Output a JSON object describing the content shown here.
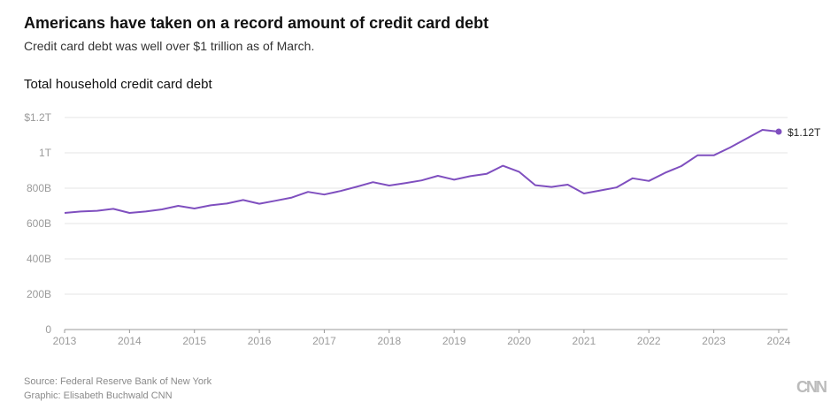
{
  "header": {
    "title": "Americans have taken on a record amount of credit card debt",
    "subtitle": "Credit card debt was well over $1 trillion as of March."
  },
  "footer": {
    "source": "Source: Federal Reserve Bank of New York",
    "graphic": "Graphic: Elisabeth Buchwald CNN",
    "logo": "CNN"
  },
  "colors": {
    "line": "#7f4fbf",
    "grid": "#e6e6e6"
  },
  "chart_data": {
    "type": "line",
    "title": "Total household credit card debt",
    "xlabel": "",
    "ylabel": "",
    "units": "billions USD",
    "xlim": [
      2013,
      2024.25
    ],
    "ylim": [
      0,
      1200
    ],
    "grid": true,
    "x_ticks": [
      "2013",
      "2014",
      "2015",
      "2016",
      "2017",
      "2018",
      "2019",
      "2020",
      "2021",
      "2022",
      "2023",
      "2024"
    ],
    "y_ticks": [
      {
        "value": 0,
        "label": "0"
      },
      {
        "value": 200,
        "label": "200B"
      },
      {
        "value": 400,
        "label": "400B"
      },
      {
        "value": 600,
        "label": "600B"
      },
      {
        "value": 800,
        "label": "800B"
      },
      {
        "value": 1000,
        "label": "1T"
      },
      {
        "value": 1200,
        "label": "$1.2T"
      }
    ],
    "x_start": 2013,
    "x_step": 0.25,
    "series": [
      {
        "name": "Total household credit card debt",
        "values": [
          660,
          668,
          672,
          683,
          660,
          668,
          680,
          700,
          685,
          703,
          713,
          733,
          712,
          729,
          747,
          779,
          764,
          784,
          808,
          834,
          815,
          829,
          844,
          870,
          848,
          868,
          881,
          927,
          893,
          817,
          807,
          820,
          770,
          787,
          804,
          856,
          841,
          887,
          925,
          986,
          986,
          1030,
          1080,
          1130,
          1120
        ]
      }
    ],
    "end_label": "$1.12T"
  }
}
